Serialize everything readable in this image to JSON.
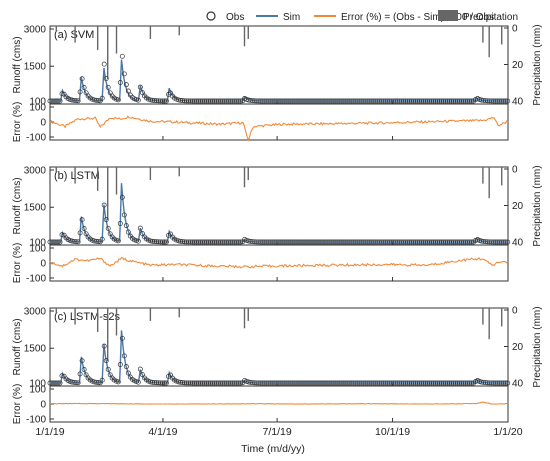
{
  "legend": {
    "obs": "Obs",
    "sim": "Sim",
    "error": "Error (%) = (Obs - Sim) *100 / Obs",
    "precip": "Precipitation"
  },
  "colors": {
    "obs": "#333333",
    "sim": "#4a78a8",
    "error": "#f08a3a",
    "precip": "#666666",
    "frame": "#333333"
  },
  "axis_labels": {
    "runoff": "Runoff (cms)",
    "error": "Error (%)",
    "precip": "Precipitation (mm)",
    "x": "Time (m/d/yy)"
  },
  "chart_data": [
    {
      "type": "line",
      "title": "(a) SVM",
      "x_tick_labels": [
        "1/1/19",
        "4/1/19",
        "7/1/19",
        "10/1/19",
        "1/1/20"
      ],
      "runoff_yticks": [
        "3000",
        "1500",
        "100"
      ],
      "runoff_ylim": [
        100,
        3000
      ],
      "error_yticks": [
        "100",
        "0",
        "-100"
      ],
      "error_ylim": [
        -100,
        100
      ],
      "precip_yticks": [
        "0",
        "20",
        "40"
      ],
      "precip_ylim": [
        0,
        40
      ],
      "sim_peaks": [
        [
          10,
          520
        ],
        [
          25,
          1050
        ],
        [
          43,
          1420
        ],
        [
          57,
          1750
        ],
        [
          72,
          700
        ],
        [
          95,
          620
        ],
        [
          155,
          260
        ],
        [
          340,
          220
        ]
      ],
      "obs_peaks": [
        [
          25,
          1180
        ],
        [
          43,
          1680
        ],
        [
          57,
          2250
        ],
        [
          72,
          640
        ]
      ],
      "error_points": [
        [
          0,
          5
        ],
        [
          12,
          -30
        ],
        [
          22,
          20
        ],
        [
          36,
          25
        ],
        [
          40,
          -35
        ],
        [
          48,
          30
        ],
        [
          56,
          20
        ],
        [
          63,
          35
        ],
        [
          80,
          5
        ],
        [
          100,
          0
        ],
        [
          135,
          -15
        ],
        [
          154,
          -5
        ],
        [
          156,
          -70
        ],
        [
          158,
          -120
        ],
        [
          162,
          -30
        ],
        [
          185,
          -15
        ],
        [
          220,
          -12
        ],
        [
          270,
          -5
        ],
        [
          320,
          5
        ],
        [
          345,
          10
        ],
        [
          354,
          30
        ],
        [
          357,
          -25
        ],
        [
          365,
          5
        ]
      ],
      "precip_points": [
        [
          5,
          2
        ],
        [
          20,
          8
        ],
        [
          38,
          12
        ],
        [
          46,
          28
        ],
        [
          53,
          14
        ],
        [
          80,
          6
        ],
        [
          103,
          4
        ],
        [
          155,
          10
        ],
        [
          158,
          6
        ],
        [
          345,
          8
        ],
        [
          350,
          16
        ],
        [
          360,
          9
        ]
      ]
    },
    {
      "type": "line",
      "title": "(b) LSTM",
      "x_tick_labels": [
        "1/1/19",
        "4/1/19",
        "7/1/19",
        "10/1/19",
        "1/1/20"
      ],
      "runoff_yticks": [
        "3000",
        "1500",
        "100"
      ],
      "runoff_ylim": [
        100,
        3000
      ],
      "error_yticks": [
        "100",
        "0",
        "-100"
      ],
      "error_ylim": [
        -100,
        100
      ],
      "precip_yticks": [
        "0",
        "20",
        "40"
      ],
      "precip_ylim": [
        0,
        40
      ],
      "sim_peaks": [
        [
          10,
          470
        ],
        [
          25,
          1120
        ],
        [
          43,
          1600
        ],
        [
          57,
          2450
        ],
        [
          72,
          640
        ],
        [
          95,
          520
        ],
        [
          155,
          200
        ],
        [
          340,
          240
        ]
      ],
      "obs_peaks": [
        [
          25,
          1180
        ],
        [
          43,
          1680
        ],
        [
          57,
          2250
        ],
        [
          72,
          640
        ]
      ],
      "error_points": [
        [
          0,
          5
        ],
        [
          10,
          -20
        ],
        [
          20,
          25
        ],
        [
          30,
          15
        ],
        [
          40,
          30
        ],
        [
          48,
          -20
        ],
        [
          57,
          30
        ],
        [
          66,
          10
        ],
        [
          80,
          -15
        ],
        [
          100,
          -10
        ],
        [
          130,
          -20
        ],
        [
          155,
          -25
        ],
        [
          180,
          -20
        ],
        [
          220,
          -15
        ],
        [
          270,
          -10
        ],
        [
          300,
          -15
        ],
        [
          330,
          20
        ],
        [
          345,
          30
        ],
        [
          352,
          -15
        ],
        [
          360,
          10
        ],
        [
          365,
          5
        ]
      ],
      "precip_points": [
        [
          5,
          2
        ],
        [
          20,
          8
        ],
        [
          38,
          12
        ],
        [
          46,
          28
        ],
        [
          53,
          14
        ],
        [
          80,
          6
        ],
        [
          103,
          4
        ],
        [
          155,
          10
        ],
        [
          158,
          6
        ],
        [
          345,
          8
        ],
        [
          350,
          16
        ],
        [
          360,
          9
        ]
      ]
    },
    {
      "type": "line",
      "title": "(c) LSTM-s2s",
      "x_tick_labels": [
        "1/1/19",
        "4/1/19",
        "7/1/19",
        "10/1/19",
        "1/1/20"
      ],
      "runoff_yticks": [
        "3000",
        "1500",
        "100"
      ],
      "runoff_ylim": [
        100,
        3000
      ],
      "error_yticks": [
        "100",
        "0",
        "-100"
      ],
      "error_ylim": [
        -100,
        100
      ],
      "precip_yticks": [
        "0",
        "20",
        "40"
      ],
      "precip_ylim": [
        0,
        40
      ],
      "sim_peaks": [
        [
          10,
          480
        ],
        [
          25,
          1150
        ],
        [
          43,
          1650
        ],
        [
          57,
          2200
        ],
        [
          72,
          620
        ],
        [
          95,
          510
        ],
        [
          155,
          200
        ],
        [
          340,
          230
        ]
      ],
      "obs_peaks": [
        [
          25,
          1180
        ],
        [
          43,
          1680
        ],
        [
          57,
          2250
        ],
        [
          72,
          640
        ]
      ],
      "error_points": [
        [
          0,
          2
        ],
        [
          20,
          3
        ],
        [
          50,
          2
        ],
        [
          80,
          0
        ],
        [
          120,
          0
        ],
        [
          160,
          2
        ],
        [
          200,
          0
        ],
        [
          260,
          2
        ],
        [
          300,
          0
        ],
        [
          340,
          3
        ],
        [
          345,
          12
        ],
        [
          352,
          0
        ],
        [
          365,
          2
        ]
      ],
      "precip_points": [
        [
          5,
          2
        ],
        [
          20,
          8
        ],
        [
          38,
          12
        ],
        [
          46,
          28
        ],
        [
          53,
          14
        ],
        [
          80,
          6
        ],
        [
          103,
          4
        ],
        [
          155,
          10
        ],
        [
          158,
          6
        ],
        [
          345,
          8
        ],
        [
          350,
          16
        ],
        [
          360,
          9
        ]
      ]
    }
  ]
}
